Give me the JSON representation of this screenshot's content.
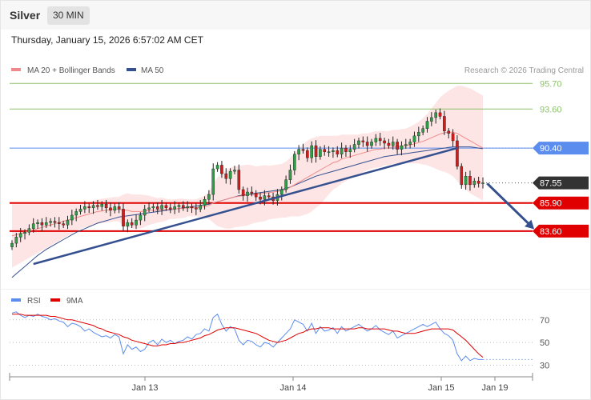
{
  "header": {
    "title": "Silver",
    "timeframe": "30 MIN",
    "datetime": "Thursday, January 15, 2026 6:57:02 AM CET"
  },
  "legend": {
    "ma20_label": "MA 20 + Bollinger Bands",
    "ma50_label": "MA 50",
    "copyright": "Research © 2026 Trading Central",
    "rsi_label": "RSI",
    "rsi_ma_label": "9MA"
  },
  "colors": {
    "bullish": "#2e9e47",
    "bearish": "#d51a1a",
    "bollinger_fill": "#fde0e0",
    "ma20": "#f08a8a",
    "ma50": "#35508f",
    "resistance": "#8dc26b",
    "pivot": "#5b8def",
    "support": "#e00000",
    "last_price": "#333333",
    "trendline": "#35508f",
    "rsi": "#5b8def",
    "rsi_ma": "#e00000"
  },
  "chart_data": [
    {
      "type": "candlestick",
      "ylim": [
        79.0,
        96.7
      ],
      "x_ticks": [
        "Jan 13",
        "Jan 14",
        "Jan 15",
        "Jan 19"
      ],
      "levels": [
        {
          "value": 95.7,
          "label": "95.70",
          "kind": "resistance"
        },
        {
          "value": 93.6,
          "label": "93.60",
          "kind": "resistance"
        },
        {
          "value": 90.4,
          "label": "90.40",
          "kind": "pivot"
        },
        {
          "value": 87.55,
          "label": "87.55",
          "kind": "last"
        },
        {
          "value": 85.9,
          "label": "85.90",
          "kind": "support"
        },
        {
          "value": 83.6,
          "label": "83.60",
          "kind": "support"
        }
      ],
      "closes": [
        82.6,
        83.1,
        83.4,
        83.5,
        83.8,
        84.2,
        84.3,
        84.1,
        84.3,
        84.4,
        84.3,
        84.2,
        84.1,
        84.5,
        84.9,
        85.2,
        85.4,
        85.6,
        85.5,
        85.7,
        85.6,
        85.8,
        85.5,
        85.3,
        85.6,
        85.4,
        84.0,
        84.3,
        84.1,
        84.5,
        84.9,
        85.4,
        85.5,
        85.6,
        85.4,
        85.7,
        85.5,
        85.4,
        85.6,
        85.7,
        85.5,
        85.6,
        85.5,
        85.4,
        85.7,
        86.2,
        86.6,
        88.7,
        89.0,
        88.3,
        87.9,
        88.5,
        88.6,
        87.0,
        86.5,
        86.8,
        86.7,
        86.4,
        86.2,
        86.5,
        86.4,
        86.1,
        86.6,
        87.0,
        87.8,
        88.6,
        89.9,
        90.3,
        90.2,
        89.6,
        90.6,
        89.7,
        90.3,
        90.1,
        90.1,
        90.2,
        89.9,
        90.4,
        90.1,
        90.3,
        90.7,
        91.0,
        90.9,
        90.6,
        90.9,
        91.2,
        91.0,
        90.8,
        90.6,
        90.9,
        90.3,
        90.6,
        90.7,
        90.9,
        91.4,
        91.7,
        92.0,
        92.6,
        92.9,
        93.3,
        93.0,
        91.8,
        91.6,
        91.0,
        88.9,
        87.4,
        88.1,
        87.4,
        87.7,
        87.5,
        87.55
      ],
      "ma20": [
        83.2,
        83.3,
        83.4,
        83.5,
        83.6,
        83.7,
        83.8,
        83.9,
        84.0,
        84.1,
        84.2,
        84.3,
        84.4,
        84.5,
        84.6,
        84.7,
        84.8,
        84.9,
        85.0,
        85.1,
        85.2,
        85.25,
        85.3,
        85.35,
        85.4,
        85.4,
        85.3,
        85.3,
        85.2,
        85.2,
        85.2,
        85.25,
        85.3,
        85.3,
        85.3,
        85.35,
        85.35,
        85.4,
        85.4,
        85.45,
        85.45,
        85.5,
        85.5,
        85.5,
        85.55,
        85.6,
        85.7,
        85.9,
        86.0,
        86.1,
        86.2,
        86.3,
        86.4,
        86.45,
        86.5,
        86.55,
        86.6,
        86.6,
        86.65,
        86.7,
        86.75,
        86.8,
        86.85,
        86.9,
        87.0,
        87.2,
        87.4,
        87.6,
        87.8,
        88.0,
        88.2,
        88.4,
        88.6,
        88.8,
        89.0,
        89.2,
        89.3,
        89.5,
        89.6,
        89.7,
        89.8,
        89.9,
        90.0,
        90.1,
        90.2,
        90.3,
        90.3,
        90.4,
        90.4,
        90.5,
        90.5,
        90.55,
        90.6,
        90.65,
        90.75,
        90.85,
        90.95,
        91.1,
        91.25,
        91.4,
        91.55,
        91.65,
        91.7,
        91.7,
        91.6,
        91.4,
        91.2,
        91.0,
        90.8,
        90.6,
        90.4
      ],
      "ma50": [
        79.8,
        80.1,
        80.4,
        80.7,
        81.0,
        81.3,
        81.6,
        81.85,
        82.1,
        82.3,
        82.5,
        82.7,
        82.9,
        83.1,
        83.3,
        83.5,
        83.65,
        83.8,
        83.95,
        84.1,
        84.25,
        84.35,
        84.45,
        84.55,
        84.65,
        84.75,
        84.8,
        84.85,
        84.9,
        84.95,
        85.0,
        85.05,
        85.1,
        85.15,
        85.2,
        85.25,
        85.3,
        85.35,
        85.4,
        85.45,
        85.5,
        85.55,
        85.6,
        85.65,
        85.7,
        85.75,
        85.8,
        85.9,
        86.0,
        86.1,
        86.2,
        86.3,
        86.4,
        86.5,
        86.55,
        86.6,
        86.65,
        86.7,
        86.75,
        86.8,
        86.85,
        86.9,
        86.95,
        87.0,
        87.1,
        87.2,
        87.35,
        87.5,
        87.65,
        87.8,
        87.95,
        88.1,
        88.2,
        88.3,
        88.4,
        88.5,
        88.6,
        88.7,
        88.8,
        88.9,
        89.0,
        89.1,
        89.2,
        89.3,
        89.4,
        89.5,
        89.6,
        89.7,
        89.75,
        89.8,
        89.85,
        89.9,
        89.95,
        90.0,
        90.05,
        90.1,
        90.15,
        90.2,
        90.25,
        90.3,
        90.35,
        90.4,
        90.45,
        90.5,
        90.5,
        90.5,
        90.5,
        90.5,
        90.45,
        90.4,
        90.35
      ],
      "bb_width": [
        2.6,
        2.5,
        2.4,
        2.3,
        2.2,
        2.1,
        2.0,
        1.9,
        1.8,
        1.7,
        1.6,
        1.5,
        1.4,
        1.3,
        1.2,
        1.1,
        1.0,
        1.0,
        1.0,
        1.0,
        1.0,
        1.0,
        1.0,
        1.0,
        1.0,
        1.0,
        1.3,
        1.4,
        1.4,
        1.4,
        1.4,
        1.3,
        1.2,
        1.1,
        1.0,
        1.0,
        0.9,
        0.8,
        0.8,
        0.8,
        0.8,
        0.7,
        0.7,
        0.7,
        0.8,
        0.9,
        1.1,
        1.6,
        2.0,
        2.2,
        2.4,
        2.5,
        2.5,
        2.5,
        2.5,
        2.5,
        2.4,
        2.3,
        2.3,
        2.3,
        2.2,
        2.2,
        2.2,
        2.2,
        2.3,
        2.4,
        2.6,
        2.8,
        2.9,
        3.0,
        3.0,
        2.9,
        2.8,
        2.6,
        2.4,
        2.2,
        2.1,
        2.0,
        1.9,
        1.8,
        1.7,
        1.6,
        1.6,
        1.5,
        1.5,
        1.5,
        1.5,
        1.4,
        1.4,
        1.4,
        1.4,
        1.4,
        1.4,
        1.5,
        1.6,
        1.7,
        1.9,
        2.1,
        2.4,
        2.7,
        3.0,
        3.2,
        3.4,
        3.6,
        3.9,
        4.1,
        4.2,
        4.3,
        4.3,
        4.3,
        4.3
      ],
      "trendline": {
        "from": [
          5,
          80.9
        ],
        "to": [
          104,
          90.4
        ]
      },
      "forecast_arrow": {
        "from": [
          111,
          87.5
        ],
        "to": [
          122,
          83.75
        ]
      }
    },
    {
      "type": "line",
      "name": "RSI",
      "ylim": [
        24,
        79
      ],
      "ticks": [
        70,
        50,
        30
      ],
      "rsi": [
        76,
        77,
        74,
        72,
        74,
        73,
        75,
        73,
        72,
        70,
        71,
        69,
        68,
        64,
        67,
        66,
        64,
        60,
        62,
        59,
        57,
        55,
        56,
        54,
        57,
        55,
        40,
        48,
        44,
        46,
        42,
        44,
        50,
        52,
        48,
        53,
        50,
        52,
        49,
        51,
        52,
        55,
        53,
        57,
        58,
        62,
        60,
        72,
        75,
        66,
        60,
        64,
        62,
        52,
        48,
        52,
        51,
        48,
        46,
        50,
        49,
        46,
        50,
        54,
        58,
        62,
        70,
        68,
        66,
        60,
        67,
        58,
        64,
        60,
        61,
        63,
        58,
        64,
        60,
        62,
        64,
        66,
        63,
        60,
        62,
        65,
        61,
        59,
        57,
        60,
        54,
        56,
        58,
        60,
        62,
        64,
        66,
        64,
        66,
        68,
        62,
        58,
        56,
        52,
        40,
        34,
        38,
        34,
        36,
        35,
        35
      ],
      "rsi_ma": [
        75,
        75,
        75,
        74,
        74,
        74,
        74,
        74,
        74,
        73,
        73,
        72,
        71,
        70,
        70,
        69,
        68,
        67,
        66,
        65,
        63,
        62,
        60,
        59,
        58,
        57,
        55,
        54,
        52,
        51,
        50,
        49,
        48,
        47,
        47,
        48,
        48,
        49,
        49,
        50,
        50,
        51,
        52,
        53,
        54,
        56,
        57,
        59,
        61,
        62,
        63,
        63,
        63,
        62,
        61,
        60,
        59,
        58,
        56,
        54,
        52,
        51,
        50,
        51,
        52,
        54,
        56,
        58,
        59,
        61,
        62,
        62,
        63,
        63,
        63,
        62,
        62,
        62,
        62,
        62,
        62,
        63,
        63,
        62,
        62,
        62,
        62,
        62,
        61,
        60,
        60,
        59,
        58,
        58,
        58,
        59,
        60,
        61,
        62,
        62,
        62,
        62,
        62,
        61,
        58,
        55,
        52,
        48,
        44,
        40,
        37
      ]
    }
  ]
}
